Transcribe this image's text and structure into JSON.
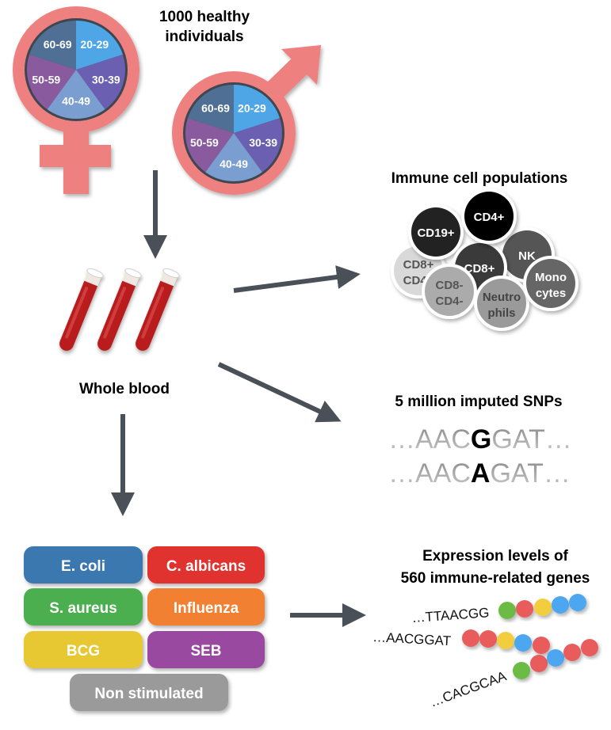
{
  "title": {
    "line1": "1000 healthy",
    "line2": "individuals"
  },
  "age_groups": [
    "20-29",
    "30-39",
    "40-49",
    "50-59",
    "60-69"
  ],
  "age_colors": [
    "#4ea6e6",
    "#6a5fb0",
    "#7a9ecf",
    "#8a5a9e",
    "#506f95"
  ],
  "sex_symbol_color": "#ee8080",
  "blood": {
    "label": "Whole blood",
    "tube_color": "#b81e1e"
  },
  "immune": {
    "title": "Immune cell populations",
    "cells": [
      {
        "line1": "CD8+",
        "line2": "CD4+",
        "fill": "#d9d9d9",
        "text": "#555555"
      },
      {
        "line1": "NK",
        "line2": "",
        "fill": "#555555",
        "text": "#ffffff"
      },
      {
        "line1": "CD19+",
        "line2": "",
        "fill": "#222222",
        "text": "#ffffff"
      },
      {
        "line1": "CD8+",
        "line2": "",
        "fill": "#3a3a3a",
        "text": "#ffffff"
      },
      {
        "line1": "CD4+",
        "line2": "",
        "fill": "#000000",
        "text": "#ffffff"
      },
      {
        "line1": "CD8-",
        "line2": "CD4-",
        "fill": "#ababab",
        "text": "#555555"
      },
      {
        "line1": "Neutro",
        "line2": "phils",
        "fill": "#9a9a9a",
        "text": "#444444"
      },
      {
        "line1": "Mono",
        "line2": "cytes",
        "fill": "#666666",
        "text": "#ffffff"
      }
    ]
  },
  "snps": {
    "title": "5 million imputed SNPs",
    "seq1": {
      "pre": "…AAC",
      "allele": "G",
      "post": "GAT…"
    },
    "seq2": {
      "pre": "…AAC",
      "allele": "A",
      "post": "GAT…"
    }
  },
  "stimuli": [
    {
      "label": "E. coli",
      "color": "#3a78b0"
    },
    {
      "label": "C. albicans",
      "color": "#e0302f"
    },
    {
      "label": "S. aureus",
      "color": "#4caf50"
    },
    {
      "label": "Influenza",
      "color": "#f28030"
    },
    {
      "label": "BCG",
      "color": "#e8c832"
    },
    {
      "label": "SEB",
      "color": "#9a4aa0"
    },
    {
      "label": "Non stimulated",
      "color": "#9a9a9a"
    }
  ],
  "expression": {
    "line1": "Expression levels of",
    "line2": "560 immune-related genes",
    "rows": [
      {
        "seq": "…TTAACGG",
        "dots": [
          "#6cbb45",
          "#e85c5c",
          "#f2cd3c",
          "#4ea6f0",
          "#4ea6f0"
        ]
      },
      {
        "seq": "…AACGGAT",
        "dots": [
          "#e85c5c",
          "#e85c5c",
          "#f2cd3c",
          "#4ea6f0",
          "#e85c5c"
        ]
      },
      {
        "seq": "…CACGCAA",
        "dots": [
          "#6cbb45",
          "#e85c5c",
          "#4ea6f0",
          "#e85c5c",
          "#e85c5c"
        ]
      }
    ]
  },
  "arrow_color": "#4a5058"
}
